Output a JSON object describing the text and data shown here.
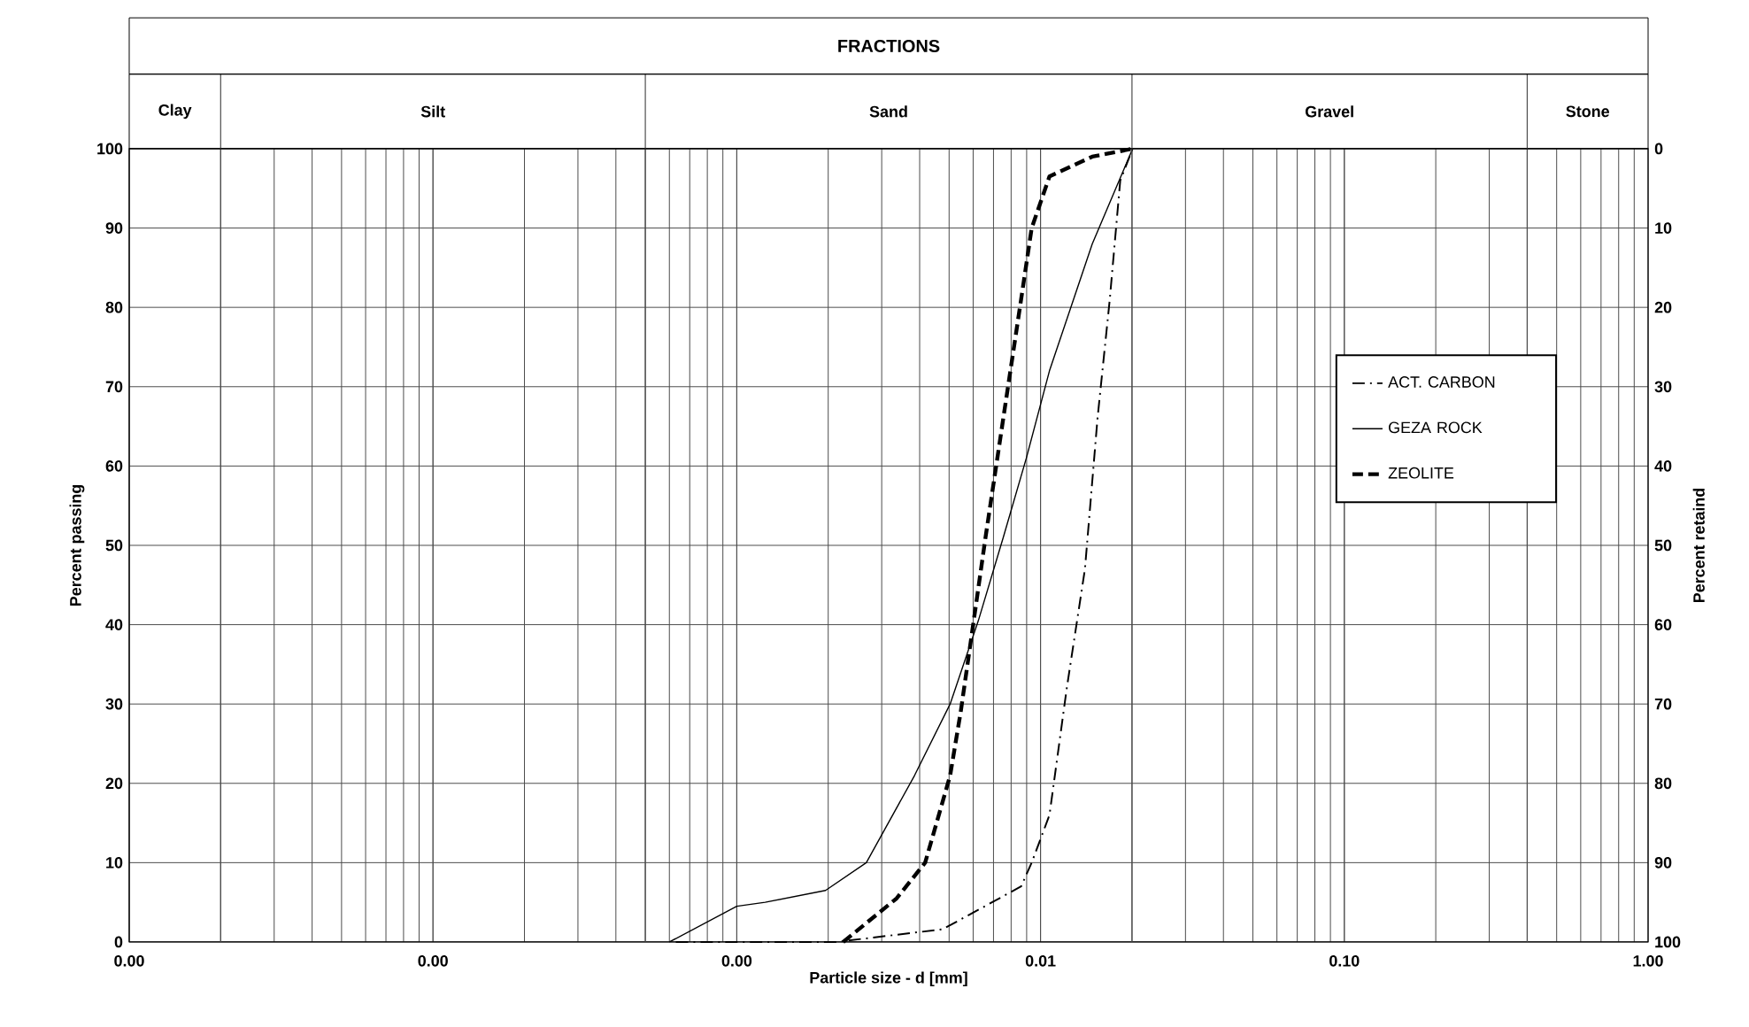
{
  "chart_data": {
    "type": "line",
    "title": "FRACTIONS",
    "xlabel": "Particle size - d [mm]",
    "ylabel": "Percent passing",
    "y2label": "Percent retaind",
    "log": "x",
    "xlim": [
      1e-05,
      1
    ],
    "xticks": [
      {
        "value": 1e-05,
        "label": "0.00"
      },
      {
        "value": 0.0001,
        "label": "0.00"
      },
      {
        "value": 0.001,
        "label": "0.00"
      },
      {
        "value": 0.01,
        "label": "0.01"
      },
      {
        "value": 0.1,
        "label": "0.10"
      },
      {
        "value": 1,
        "label": "1.00"
      }
    ],
    "ylim": [
      0,
      100
    ],
    "yticks": [
      0,
      10,
      20,
      30,
      40,
      50,
      60,
      70,
      80,
      90,
      100
    ],
    "y2lim": [
      100,
      0
    ],
    "y2ticks": [
      0,
      10,
      20,
      30,
      40,
      50,
      60,
      70,
      80,
      90,
      100
    ],
    "grid": true,
    "legend": "right",
    "ref_lines": [
      {
        "axis": "x",
        "value": 2e-05
      },
      {
        "axis": "x",
        "value": 0.0005
      },
      {
        "axis": "x",
        "value": 0.02
      },
      {
        "axis": "x",
        "value": 0.4
      }
    ],
    "annotations": [
      "Clay",
      "Silt",
      "Sand",
      "Gravel",
      "Stone"
    ],
    "series": [
      {
        "name": "ACT. CARBON",
        "color": "#000000",
        "line_style": "dashdot",
        "x": [
          0.00063,
          0.00212,
          0.00476,
          0.00863,
          0.00935,
          0.0107,
          0.0122,
          0.014,
          0.0154,
          0.0169,
          0.0183,
          0.0201
        ],
        "values": [
          0,
          0,
          1.6,
          7,
          10,
          16,
          32,
          47,
          66,
          81,
          96,
          100
        ]
      },
      {
        "name": "GEZA ROCK",
        "color": "#000000",
        "line_style": "solid",
        "x": [
          0.0006,
          0.001,
          0.00124,
          0.00196,
          0.00267,
          0.00385,
          0.00504,
          0.00624,
          0.00754,
          0.00898,
          0.0107,
          0.0148,
          0.0201
        ],
        "values": [
          0,
          4.5,
          5,
          6.5,
          10,
          21,
          30,
          40.5,
          51,
          61,
          72,
          88,
          100
        ]
      },
      {
        "name": "ZEOLITE",
        "color": "#000000",
        "line_style": "dashed",
        "x": [
          0.00224,
          0.00336,
          0.00417,
          0.00504,
          0.00546,
          0.006,
          0.00659,
          0.00754,
          0.00863,
          0.00935,
          0.0107,
          0.0148,
          0.0201
        ],
        "values": [
          0,
          5.5,
          10,
          21,
          29,
          40,
          51,
          66,
          81,
          90,
          96.5,
          99,
          100
        ]
      }
    ]
  }
}
